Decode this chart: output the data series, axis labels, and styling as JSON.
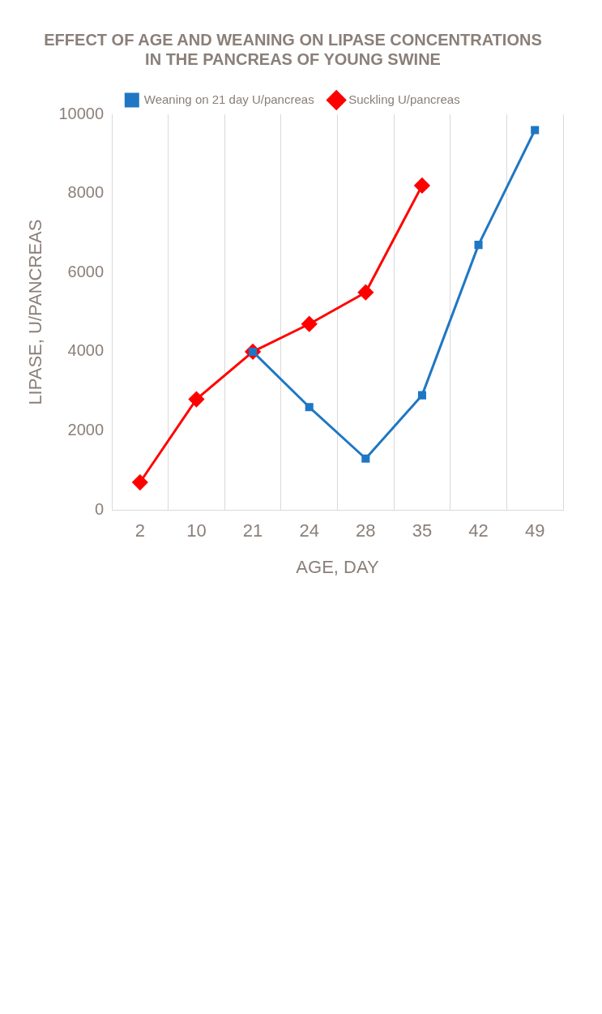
{
  "chart_data": {
    "type": "line",
    "title": "EFFECT OF AGE AND WEANING ON LIPASE CONCENTRATIONS\nIN THE PANCREAS OF YOUNG SWINE",
    "xlabel": "AGE, DAY",
    "ylabel": "LIPASE, U/PANCREAS",
    "categories": [
      "2",
      "10",
      "21",
      "24",
      "28",
      "35",
      "42",
      "49"
    ],
    "series": [
      {
        "name": "Suckling U/pancreas",
        "color": "#ff0000",
        "marker": "diamond",
        "values": [
          700,
          2800,
          4000,
          4700,
          5500,
          8200,
          null,
          null
        ]
      },
      {
        "name": "Weaning on 21 day U/pancreas",
        "color": "#1f77c4",
        "marker": "square",
        "values": [
          null,
          null,
          4000,
          2600,
          1300,
          2900,
          6700,
          9600
        ]
      }
    ],
    "ylim": [
      0,
      10000
    ],
    "yticks": [
      0,
      2000,
      4000,
      6000,
      8000,
      10000
    ],
    "grid": "x",
    "legend": "top",
    "line_style": "solid"
  }
}
